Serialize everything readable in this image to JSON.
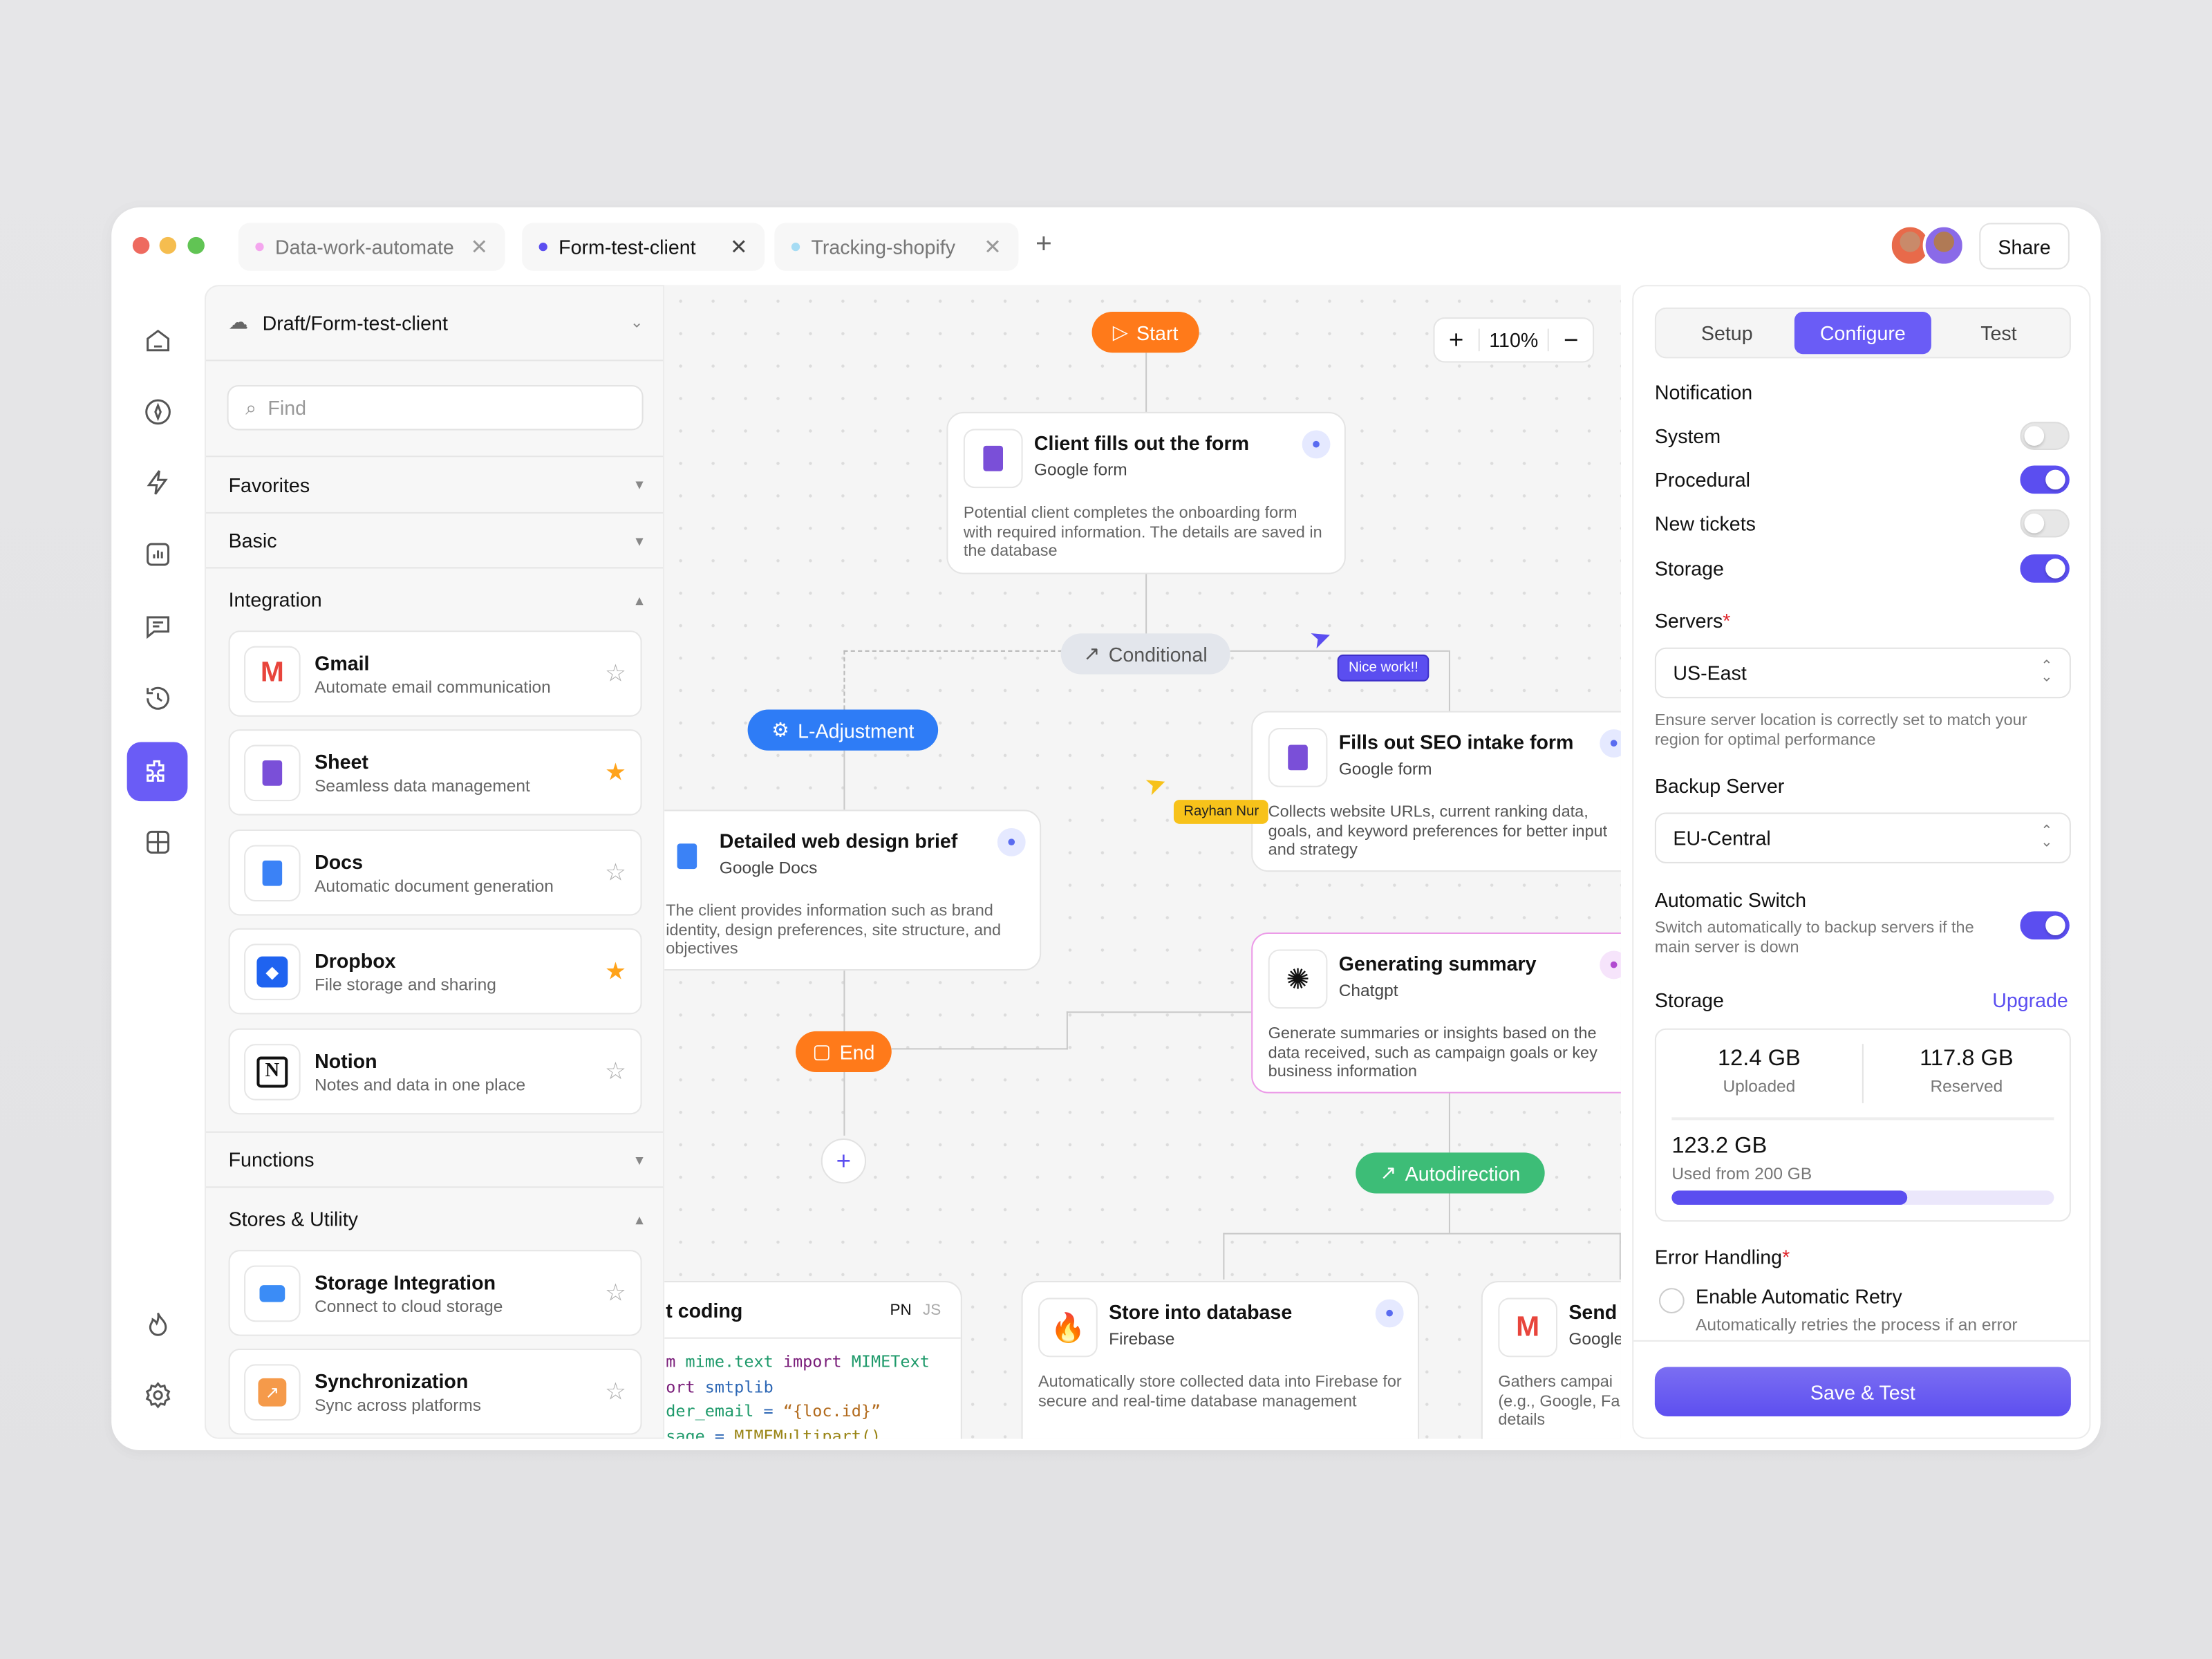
{
  "tabs": [
    {
      "label": "Data-work-automate",
      "dot": "#f4a6ee"
    },
    {
      "label": "Form-test-client",
      "dot": "#5b4ef0"
    },
    {
      "label": "Tracking-shopify",
      "dot": "#a6dcf4"
    }
  ],
  "header": {
    "share_label": "Share",
    "add_tab": "+"
  },
  "rail": {
    "items": [
      "home-icon",
      "explore-icon",
      "bolt-icon",
      "chart-icon",
      "chat-icon",
      "history-icon",
      "integrations-icon",
      "grid-icon"
    ],
    "active": "integrations-icon",
    "bottom": [
      "flame-icon",
      "gear-icon"
    ]
  },
  "sidebar": {
    "project": "Draft/Form-test-client",
    "search_placeholder": "Find",
    "sections": {
      "favorites": "Favorites",
      "basic": "Basic",
      "integration": "Integration",
      "functions": "Functions",
      "stores": "Stores & Utility"
    },
    "integrations": [
      {
        "title": "Gmail",
        "subtitle": "Automate email communication",
        "starred": false
      },
      {
        "title": "Sheet",
        "subtitle": "Seamless data management",
        "starred": true
      },
      {
        "title": "Docs",
        "subtitle": "Automatic document generation",
        "starred": false
      },
      {
        "title": "Dropbox",
        "subtitle": "File storage and sharing",
        "starred": true
      },
      {
        "title": "Notion",
        "subtitle": "Notes and data in one place",
        "starred": false
      }
    ],
    "stores": [
      {
        "title": "Storage Integration",
        "subtitle": "Connect to cloud storage",
        "starred": false
      },
      {
        "title": "Synchronization",
        "subtitle": "Sync across platforms",
        "starred": false
      }
    ]
  },
  "canvas": {
    "zoom": "110%",
    "zoom_in": "+",
    "zoom_out": "−",
    "start": "Start",
    "end": "End",
    "conditional": "Conditional",
    "l_adjustment": "L-Adjustment",
    "autodirection": "Autodirection",
    "cursors": [
      {
        "name": "Nice work!!",
        "color": "#5b4ef0"
      },
      {
        "name": "Rayhan Nur",
        "color": "#f7c21a"
      }
    ],
    "nodes": {
      "client_form": {
        "title": "Client fills out the form",
        "app": "Google form",
        "desc": "Potential client completes the onboarding form with required information. The details are saved in the database"
      },
      "seo_form": {
        "title": "Fills out SEO intake form",
        "app": "Google form",
        "desc": "Collects website URLs, current ranking data, goals, and keyword preferences for better input and strategy"
      },
      "design_brief": {
        "title": "Detailed web design brief",
        "app": "Google Docs",
        "desc": "The client provides information such as brand identity, design preferences, site structure, and objectives"
      },
      "summary": {
        "title": "Generating summary",
        "app": "Chatgpt",
        "desc": "Generate summaries or insights based on the data received, such as campaign goals or key business information"
      },
      "coding": {
        "title": "t coding",
        "lang_active": "PN",
        "lang_inactive": "JS",
        "code": [
          [
            "m ",
            "mime.text ",
            "import ",
            "MIMEText"
          ],
          [
            "ort ",
            "smtplib"
          ],
          [
            "der_email",
            " = ",
            "“{loc.id}”"
          ],
          [
            "sage",
            " = ",
            "MIMEMultipart()"
          ]
        ]
      },
      "store_db": {
        "title": "Store into database",
        "app": "Firebase",
        "desc": "Automatically store collected data into Firebase for secure and real-time database management"
      },
      "send": {
        "title": "Send a",
        "app": "Google",
        "desc": "Gathers campai (e.g., Google, Fa details"
      }
    }
  },
  "panel": {
    "tabs": [
      "Setup",
      "Configure",
      "Test"
    ],
    "active_tab": "Configure",
    "notification_label": "Notification",
    "toggles": [
      {
        "label": "System",
        "on": false
      },
      {
        "label": "Procedural",
        "on": true
      },
      {
        "label": "New tickets",
        "on": false
      },
      {
        "label": "Storage",
        "on": true
      }
    ],
    "servers_label": "Servers",
    "required": "*",
    "server": "US-East",
    "server_help": "Ensure server location is correctly set to match your region for optimal performance",
    "backup_label": "Backup Server",
    "backup": "EU-Central",
    "auto_switch_label": "Automatic Switch",
    "auto_switch_desc": "Switch automatically to backup servers if the main server is down",
    "auto_switch_on": true,
    "storage_label": "Storage",
    "upgrade": "Upgrade",
    "uploaded": "12.4 GB",
    "uploaded_label": "Uploaded",
    "reserved": "117.8 GB",
    "reserved_label": "Reserved",
    "used": "123.2 GB",
    "used_label": "Used from 200 GB",
    "used_fraction": 0.616,
    "error_label": "Error Handling",
    "retry_label": "Enable Automatic Retry",
    "retry_desc": "Automatically retries the process if an error",
    "retry_checked": false,
    "save_label": "Save & Test"
  },
  "colors": {
    "accent": "#5b4ef0",
    "start": "#ff7a1a",
    "l_adjustment": "#2e7cf6",
    "autodirection": "#3dbd77",
    "conditional": "#e3e6ec"
  }
}
